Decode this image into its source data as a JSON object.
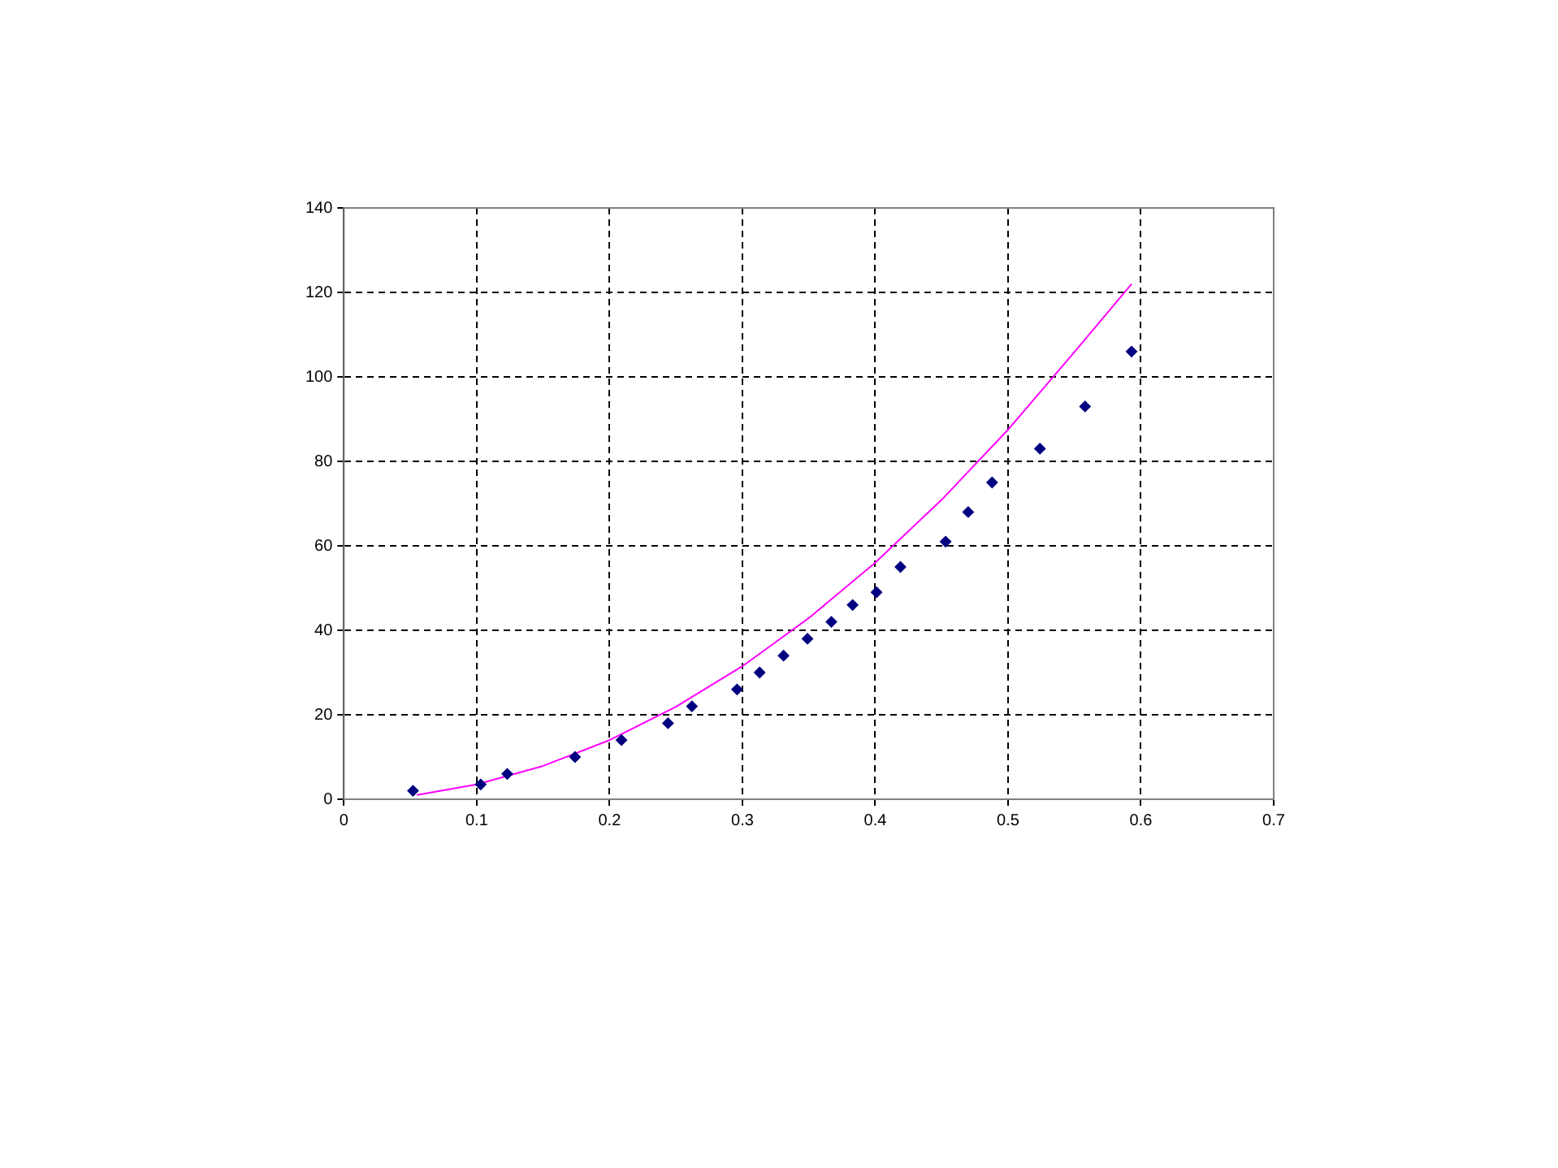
{
  "chart_data": {
    "type": "scatter",
    "marker": "diamond",
    "grid": true,
    "legend": false,
    "xlim": [
      0,
      0.7
    ],
    "xticks": [
      0,
      0.1,
      0.2,
      0.3,
      0.4,
      0.5,
      0.6,
      0.7
    ],
    "ylim": [
      0,
      140
    ],
    "yticks": [
      0,
      20,
      40,
      60,
      80,
      100,
      120,
      140
    ],
    "series": [
      {
        "color": "#000080",
        "x": [
          0.052,
          0.103,
          0.123,
          0.174,
          0.209,
          0.244,
          0.262,
          0.296,
          0.313,
          0.331,
          0.349,
          0.367,
          0.383,
          0.401,
          0.419,
          0.453,
          0.47,
          0.488,
          0.524,
          0.558,
          0.593
        ],
        "values": [
          2,
          3.5,
          6,
          10,
          14,
          18,
          22,
          26,
          30,
          34,
          38,
          42,
          46,
          49,
          55,
          61,
          68,
          75,
          83,
          93,
          106
        ]
      },
      {
        "type": "line",
        "marker": "none",
        "color": "#ff00ff",
        "x": [
          0.055,
          0.1,
          0.15,
          0.2,
          0.25,
          0.3,
          0.35,
          0.4,
          0.45,
          0.5,
          0.55,
          0.593
        ],
        "values": [
          1,
          3.5,
          7.9,
          14,
          21.9,
          31.5,
          42.9,
          56,
          70.9,
          87.5,
          105.9,
          122
        ]
      }
    ]
  }
}
